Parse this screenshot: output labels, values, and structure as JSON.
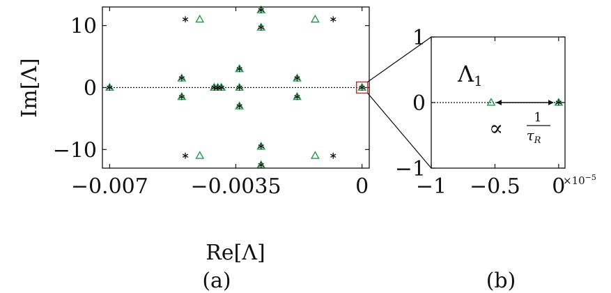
{
  "chart_data": [
    {
      "panel": "(a)",
      "type": "scatter",
      "xlabel": "Re[Λ]",
      "ylabel": "Im[Λ]",
      "xlim": [
        -0.0072,
        0.0002
      ],
      "ylim": [
        -13,
        13
      ],
      "xticks": [
        {
          "value": -0.007,
          "label": "−0.007"
        },
        {
          "value": -0.0035,
          "label": "−0.0035"
        },
        {
          "value": 0,
          "label": "0"
        }
      ],
      "yticks": [
        {
          "value": 10,
          "label": "10"
        },
        {
          "value": 0,
          "label": "0"
        },
        {
          "value": -10,
          "label": "−10"
        }
      ],
      "zero_line": "dotted",
      "series": [
        {
          "marker": "triangle",
          "color": "#1e9e4a",
          "points": [
            [
              -0.007,
              0
            ],
            [
              -0.005,
              1.5
            ],
            [
              -0.005,
              -1.5
            ],
            [
              -0.0041,
              0
            ],
            [
              -0.004,
              0
            ],
            [
              -0.0039,
              0
            ],
            [
              -0.0034,
              3.0
            ],
            [
              -0.0034,
              0
            ],
            [
              -0.0034,
              -3.0
            ],
            [
              -0.0028,
              12.5
            ],
            [
              -0.0028,
              9.7
            ],
            [
              -0.0028,
              -9.5
            ],
            [
              -0.0028,
              -12.5
            ],
            [
              -0.0018,
              1.5
            ],
            [
              -0.0018,
              -1.5
            ],
            [
              -0.0045,
              11.0
            ],
            [
              -0.0045,
              -11.0
            ],
            [
              -0.0013,
              11.0
            ],
            [
              -0.0013,
              -11.0
            ],
            [
              0,
              0
            ]
          ]
        },
        {
          "marker": "asterisk",
          "color": "#111111",
          "points": [
            [
              -0.007,
              0
            ],
            [
              -0.005,
              1.5
            ],
            [
              -0.005,
              -1.5
            ],
            [
              -0.0041,
              0
            ],
            [
              -0.004,
              0
            ],
            [
              -0.0039,
              0
            ],
            [
              -0.0034,
              3.0
            ],
            [
              -0.0034,
              0
            ],
            [
              -0.0034,
              -3.0
            ],
            [
              -0.0028,
              12.5
            ],
            [
              -0.0028,
              9.7
            ],
            [
              -0.0028,
              -9.5
            ],
            [
              -0.0028,
              -12.5
            ],
            [
              -0.0018,
              1.5
            ],
            [
              -0.0018,
              -1.5
            ],
            [
              -0.0049,
              11.0
            ],
            [
              -0.0049,
              -11.0
            ],
            [
              -0.0008,
              11.0
            ],
            [
              -0.0008,
              -11.0
            ],
            [
              0,
              0
            ]
          ]
        }
      ]
    },
    {
      "panel": "(b)",
      "type": "scatter",
      "xlim": [
        -1,
        0.05
      ],
      "ylim": [
        -1,
        1
      ],
      "x_scale_label": "×10",
      "x_scale_exponent": "−5",
      "xticks": [
        {
          "value": -1,
          "label": "−1"
        },
        {
          "value": -0.5,
          "label": "−0.5"
        },
        {
          "value": 0,
          "label": "0"
        }
      ],
      "yticks": [
        {
          "value": 1,
          "label": "1"
        },
        {
          "value": 0,
          "label": "0"
        },
        {
          "value": -1,
          "label": "−1"
        }
      ],
      "zero_line": "dotted",
      "series": [
        {
          "marker": "triangle",
          "color": "#1e9e4a",
          "points": [
            [
              -0.53,
              0
            ],
            [
              0,
              0
            ]
          ]
        },
        {
          "marker": "asterisk",
          "color": "#111111",
          "points": [
            [
              0,
              0
            ]
          ]
        }
      ],
      "annotations": {
        "lambda_label": "Λ",
        "lambda_sub": "1",
        "prop_symbol": "∝",
        "frac_num": "1",
        "frac_den": "τ",
        "frac_den_sub": "R"
      }
    }
  ],
  "inset_box_color": "#d9262c"
}
